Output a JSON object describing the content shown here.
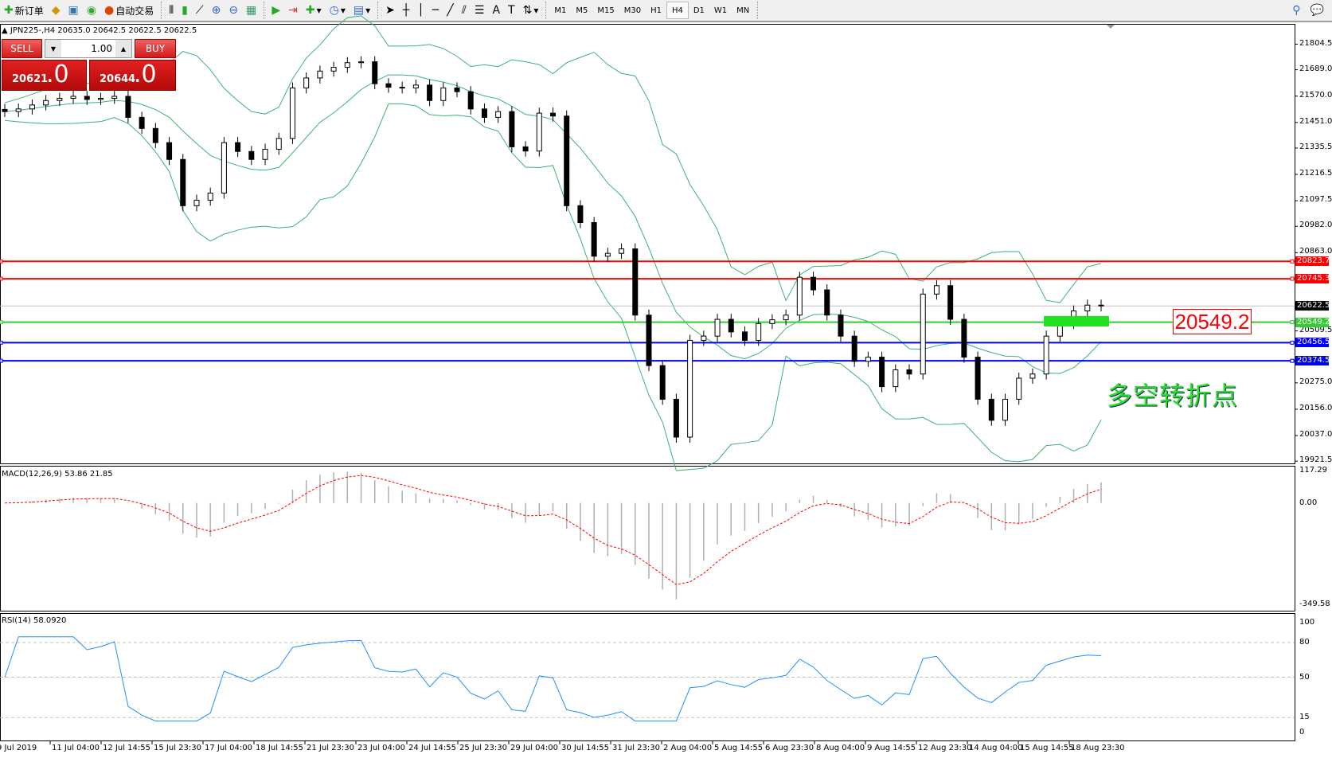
{
  "toolbar": {
    "new_order": "新订单",
    "auto_trading": "自动交易",
    "timeframes": [
      "M1",
      "M5",
      "M15",
      "M30",
      "H1",
      "H4",
      "D1",
      "W1",
      "MN"
    ],
    "active_timeframe": "H4"
  },
  "chart": {
    "title": "▲ JPN225-,H4  20635.0 20642.5 20622.5 20622.5",
    "one_click": {
      "sell": "SELL",
      "buy": "BUY",
      "lots": "1.00",
      "bid_main": "20621",
      "bid_frac": ".0",
      "ask_main": "20644",
      "ask_frac": ".0"
    },
    "annotation_price": "20549.2",
    "annotation_text": "多空转折点",
    "colors": {
      "bull_band": "#3cb371",
      "resistance": "#ff0000",
      "support": "#0000ff",
      "pivot": "#33cc33",
      "current": "#c0c0c0",
      "rsi": "#1e90ff",
      "macd_signal": "#ff0000"
    }
  },
  "chart_data": {
    "type": "candlestick",
    "symbol": "JPN225-",
    "timeframe": "H4",
    "closes": [
      21500,
      21512,
      21530,
      21550,
      21560,
      21569,
      21555,
      21560,
      21569,
      21474,
      21424,
      21360,
      21284,
      21075,
      21100,
      21132,
      21360,
      21320,
      21284,
      21330,
      21379,
      21607,
      21652,
      21683,
      21700,
      21721,
      21725,
      21626,
      21610,
      21607,
      21620,
      21550,
      21607,
      21590,
      21512,
      21474,
      21500,
      21341,
      21322,
      21493,
      21480,
      21075,
      20999,
      20847,
      20860,
      20880,
      20581,
      20353,
      20201,
      20030,
      20467,
      20486,
      20562,
      20505,
      20467,
      20543,
      20560,
      20581,
      20752,
      20695,
      20581,
      20486,
      20372,
      20391,
      20258,
      20334,
      20315,
      20676,
      20714,
      20562,
      20391,
      20201,
      20106,
      20201,
      20296,
      20315,
      20486,
      20543,
      20600,
      20626,
      20622.5
    ],
    "y_ticks": [
      "21804.5",
      "21689.0",
      "21570.0",
      "21451.0",
      "21335.5",
      "21216.5",
      "21097.5",
      "20982.0",
      "20863.0",
      "20509.5",
      "20275.0",
      "20156.0",
      "20037.0",
      "19921.5"
    ],
    "hlines": [
      {
        "price": 20823.7,
        "label": "20823.7",
        "color": "#ff0000"
      },
      {
        "price": 20745.3,
        "label": "20745.3",
        "color": "#ff0000"
      },
      {
        "price": 20622.5,
        "label": "20622.5",
        "color": "#000000"
      },
      {
        "price": 20549.2,
        "label": "20549.2",
        "color": "#33cc33"
      },
      {
        "price": 20456.5,
        "label": "20456.5",
        "color": "#0000ff"
      },
      {
        "price": 20374.5,
        "label": "20374.5",
        "color": "#0000ff"
      }
    ],
    "x_ticks": [
      "9 Jul 2019",
      "11 Jul 04:00",
      "12 Jul 14:55",
      "15 Jul 23:30",
      "17 Jul 04:00",
      "18 Jul 14:55",
      "21 Jul 23:30",
      "23 Jul 04:00",
      "24 Jul 14:55",
      "25 Jul 23:30",
      "29 Jul 04:00",
      "30 Jul 14:55",
      "31 Jul 23:30",
      "2 Aug 04:00",
      "5 Aug 14:55",
      "6 Aug 23:30",
      "8 Aug 04:00",
      "9 Aug 14:55",
      "12 Aug 23:30",
      "14 Aug 04:00",
      "15 Aug 14:55",
      "18 Aug 23:30"
    ],
    "indicators": {
      "bollinger": true,
      "macd": {
        "label": "MACD(12,26,9) 53.86 21.85",
        "ticks": [
          "117.29",
          "0.00",
          "-349.58"
        ],
        "range": [
          -349.58,
          117.29
        ]
      },
      "rsi": {
        "label": "RSI(14) 58.0920",
        "ticks": [
          "100",
          "80",
          "50",
          "15",
          "0"
        ],
        "levels": [
          80,
          50,
          15
        ]
      }
    }
  }
}
